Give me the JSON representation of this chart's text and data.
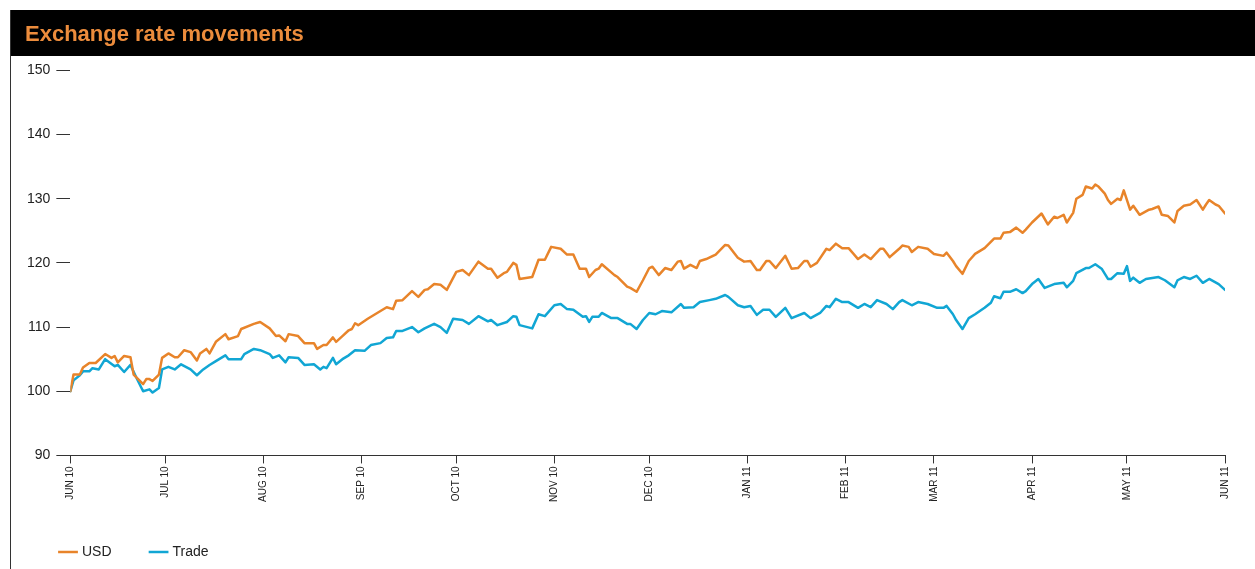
{
  "chart_data": {
    "type": "line",
    "title": "Exchange rate movements",
    "xlim": [
      "2010-06",
      "2011-06"
    ],
    "xticks": [
      {
        "value": "2010-06",
        "label": "JUN 10"
      },
      {
        "value": "2010-07",
        "label": "JUL 10"
      },
      {
        "value": "2010-08",
        "label": "AUG 10"
      },
      {
        "value": "2010-09",
        "label": "SEP 10"
      },
      {
        "value": "2010-10",
        "label": "OCT 10"
      },
      {
        "value": "2010-11",
        "label": "NOV 10"
      },
      {
        "value": "2010-12",
        "label": "DEC 10"
      },
      {
        "value": "2011-01",
        "label": "JAN 11"
      },
      {
        "value": "2011-02",
        "label": "FEB 11"
      },
      {
        "value": "2011-03",
        "label": "MAR 11"
      },
      {
        "value": "2011-04",
        "label": "APR 11"
      },
      {
        "value": "2011-05",
        "label": "MAY 11"
      },
      {
        "value": "2011-06",
        "label": "JUN 11"
      }
    ],
    "ylim": [
      90,
      150
    ],
    "yticks": [
      90,
      100,
      110,
      120,
      130,
      140,
      150
    ],
    "legend": "bottom left",
    "marker": "none",
    "series": [
      {
        "name": "USD",
        "color": "#e8842a",
        "x": [
          "2010-06-01",
          "2010-06-02",
          "2010-06-04",
          "2010-06-05",
          "2010-06-07",
          "2010-06-09",
          "2010-06-12",
          "2010-06-14",
          "2010-06-15",
          "2010-06-16",
          "2010-06-18",
          "2010-06-20",
          "2010-06-21",
          "2010-06-24",
          "2010-06-25",
          "2010-06-26",
          "2010-06-27",
          "2010-06-29",
          "2010-06-30",
          "2010-07-02",
          "2010-07-04",
          "2010-07-05",
          "2010-07-07",
          "2010-07-09",
          "2010-07-11",
          "2010-07-12",
          "2010-07-14",
          "2010-07-15",
          "2010-07-17",
          "2010-07-20",
          "2010-07-21",
          "2010-07-24",
          "2010-07-25",
          "2010-07-29",
          "2010-07-31",
          "2010-08-03",
          "2010-08-05",
          "2010-08-06",
          "2010-08-08",
          "2010-08-09",
          "2010-08-12",
          "2010-08-14",
          "2010-08-17",
          "2010-08-18",
          "2010-08-20",
          "2010-08-21",
          "2010-08-23",
          "2010-08-24",
          "2010-08-26",
          "2010-08-28",
          "2010-08-29",
          "2010-08-30",
          "2010-08-31",
          "2010-09-03",
          "2010-09-06",
          "2010-09-09",
          "2010-09-11",
          "2010-09-12",
          "2010-09-14",
          "2010-09-17",
          "2010-09-19",
          "2010-09-21",
          "2010-09-22",
          "2010-09-24",
          "2010-09-26",
          "2010-09-28",
          "2010-10-01",
          "2010-10-03",
          "2010-10-05",
          "2010-10-08",
          "2010-10-11",
          "2010-10-12",
          "2010-10-14",
          "2010-10-16",
          "2010-10-17",
          "2010-10-19",
          "2010-10-20",
          "2010-10-21",
          "2010-10-25",
          "2010-10-27",
          "2010-10-29",
          "2010-10-31",
          "2010-11-03",
          "2010-11-05",
          "2010-11-07",
          "2010-11-09",
          "2010-11-11",
          "2010-11-12",
          "2010-11-14",
          "2010-11-15",
          "2010-11-16",
          "2010-11-20",
          "2010-11-21",
          "2010-11-24",
          "2010-11-25",
          "2010-11-27",
          "2010-11-29",
          "2010-12-01",
          "2010-12-02",
          "2010-12-04",
          "2010-12-06",
          "2010-12-08",
          "2010-12-10",
          "2010-12-11",
          "2010-12-12",
          "2010-12-14",
          "2010-12-16",
          "2010-12-17",
          "2010-12-19",
          "2010-12-22",
          "2010-12-25",
          "2010-12-26",
          "2010-12-29",
          "2010-12-31",
          "2011-01-02",
          "2011-01-04",
          "2011-01-05",
          "2011-01-07",
          "2011-01-08",
          "2011-01-10",
          "2011-01-13",
          "2011-01-15",
          "2011-01-17",
          "2011-01-19",
          "2011-01-20",
          "2011-01-21",
          "2011-01-23",
          "2011-01-26",
          "2011-01-27",
          "2011-01-29",
          "2011-01-31",
          "2011-02-02",
          "2011-02-05",
          "2011-02-07",
          "2011-02-09",
          "2011-02-12",
          "2011-02-13",
          "2011-02-15",
          "2011-02-18",
          "2011-02-19",
          "2011-02-21",
          "2011-02-22",
          "2011-02-24",
          "2011-02-27",
          "2011-03-01",
          "2011-03-04",
          "2011-03-05",
          "2011-03-07",
          "2011-03-08",
          "2011-03-10",
          "2011-03-12",
          "2011-03-14",
          "2011-03-17",
          "2011-03-20",
          "2011-03-22",
          "2011-03-23",
          "2011-03-25",
          "2011-03-27",
          "2011-03-29",
          "2011-03-30",
          "2011-04-01",
          "2011-04-04",
          "2011-04-06",
          "2011-04-08",
          "2011-04-09",
          "2011-04-11",
          "2011-04-12",
          "2011-04-14",
          "2011-04-15",
          "2011-04-17",
          "2011-04-18",
          "2011-04-20",
          "2011-04-21",
          "2011-04-22",
          "2011-04-24",
          "2011-04-25",
          "2011-04-26",
          "2011-04-28",
          "2011-04-29",
          "2011-04-30",
          "2011-05-02",
          "2011-05-03",
          "2011-05-05",
          "2011-05-08",
          "2011-05-09",
          "2011-05-11",
          "2011-05-12",
          "2011-05-14",
          "2011-05-16",
          "2011-05-17",
          "2011-05-19",
          "2011-05-21",
          "2011-05-23",
          "2011-05-25",
          "2011-05-26",
          "2011-05-27",
          "2011-05-29",
          "2011-05-30",
          "2011-06-01"
        ],
        "values": [
          100,
          102.6,
          102.6,
          103.7,
          104.4,
          104.4,
          105.8,
          105.2,
          105.5,
          104.5,
          105.5,
          105.3,
          102.6,
          101.1,
          101.9,
          101.9,
          101.6,
          102.6,
          105.2,
          105.9,
          105.3,
          105.3,
          106.4,
          106.1,
          104.8,
          105.9,
          106.6,
          105.9,
          107.7,
          108.9,
          108.1,
          108.6,
          109.7,
          110.5,
          110.8,
          109.8,
          108.6,
          108.7,
          107.8,
          108.9,
          108.6,
          107.5,
          107.5,
          106.6,
          107.2,
          107.2,
          108.4,
          107.7,
          108.6,
          109.5,
          109.7,
          110.6,
          110.3,
          111.3,
          112.2,
          113.1,
          112.8,
          114.1,
          114.2,
          115.6,
          114.7,
          115.8,
          115.9,
          116.7,
          116.6,
          115.8,
          118.6,
          118.9,
          118.1,
          120.2,
          119.1,
          119.1,
          117.7,
          118.4,
          118.6,
          120.0,
          119.7,
          117.5,
          117.8,
          120.5,
          120.5,
          122.5,
          122.2,
          121.3,
          121.3,
          119.1,
          119.1,
          117.8,
          118.9,
          119.1,
          119.8,
          118.1,
          117.8,
          116.3,
          116.1,
          115.5,
          117.3,
          119.2,
          119.4,
          118.1,
          119.2,
          118.9,
          120.2,
          120.3,
          119.1,
          119.7,
          119.2,
          120.3,
          120.6,
          121.3,
          122.8,
          122.7,
          120.8,
          120.2,
          120.3,
          118.9,
          118.9,
          120.3,
          120.3,
          119.2,
          121.1,
          119.1,
          119.2,
          120.3,
          120.3,
          119.4,
          120.0,
          122.2,
          122.0,
          123.0,
          122.3,
          122.3,
          120.6,
          121.3,
          120.6,
          122.2,
          122.2,
          120.9,
          122.2,
          122.7,
          122.5,
          121.7,
          122.5,
          122.2,
          121.4,
          121.1,
          121.6,
          120.3,
          119.5,
          118.3,
          120.3,
          121.4,
          122.3,
          123.8,
          123.8,
          124.7,
          124.8,
          125.5,
          124.7,
          125.2,
          126.3,
          127.7,
          126.0,
          127.2,
          127.0,
          127.5,
          126.3,
          127.8,
          130.0,
          130.6,
          131.9,
          131.6,
          132.2,
          131.9,
          130.8,
          129.8,
          129.2,
          130.0,
          129.8,
          131.3,
          128.3,
          128.9,
          127.5,
          128.3,
          128.4,
          128.8,
          127.5,
          127.3,
          126.3,
          128.1,
          128.9,
          129.1,
          129.8,
          128.3,
          129.1,
          129.8,
          129.1,
          128.9,
          127.7
        ]
      },
      {
        "name": "Trade",
        "color": "#11a6d4",
        "x": [
          "2010-06-01",
          "2010-06-02",
          "2010-06-04",
          "2010-06-05",
          "2010-06-07",
          "2010-06-08",
          "2010-06-10",
          "2010-06-12",
          "2010-06-15",
          "2010-06-16",
          "2010-06-18",
          "2010-06-20",
          "2010-06-22",
          "2010-06-24",
          "2010-06-26",
          "2010-06-27",
          "2010-06-29",
          "2010-06-30",
          "2010-07-02",
          "2010-07-04",
          "2010-07-06",
          "2010-07-09",
          "2010-07-11",
          "2010-07-13",
          "2010-07-15",
          "2010-07-17",
          "2010-07-20",
          "2010-07-21",
          "2010-07-25",
          "2010-07-26",
          "2010-07-29",
          "2010-07-31",
          "2010-08-03",
          "2010-08-04",
          "2010-08-06",
          "2010-08-08",
          "2010-08-09",
          "2010-08-12",
          "2010-08-14",
          "2010-08-17",
          "2010-08-19",
          "2010-08-20",
          "2010-08-21",
          "2010-08-23",
          "2010-08-24",
          "2010-08-26",
          "2010-08-28",
          "2010-08-30",
          "2010-09-02",
          "2010-09-04",
          "2010-09-07",
          "2010-09-09",
          "2010-09-11",
          "2010-09-12",
          "2010-09-14",
          "2010-09-17",
          "2010-09-19",
          "2010-09-21",
          "2010-09-24",
          "2010-09-26",
          "2010-09-28",
          "2010-09-30",
          "2010-10-03",
          "2010-10-05",
          "2010-10-08",
          "2010-10-11",
          "2010-10-12",
          "2010-10-14",
          "2010-10-17",
          "2010-10-19",
          "2010-10-20",
          "2010-10-21",
          "2010-10-25",
          "2010-10-27",
          "2010-10-29",
          "2010-11-01",
          "2010-11-03",
          "2010-11-05",
          "2010-11-07",
          "2010-11-10",
          "2010-11-11",
          "2010-11-12",
          "2010-11-13",
          "2010-11-15",
          "2010-11-16",
          "2010-11-19",
          "2010-11-21",
          "2010-11-24",
          "2010-11-25",
          "2010-11-27",
          "2010-11-29",
          "2010-12-01",
          "2010-12-03",
          "2010-12-05",
          "2010-12-08",
          "2010-12-11",
          "2010-12-12",
          "2010-12-15",
          "2010-12-17",
          "2010-12-20",
          "2010-12-22",
          "2010-12-25",
          "2010-12-26",
          "2010-12-29",
          "2010-12-31",
          "2011-01-02",
          "2011-01-04",
          "2011-01-06",
          "2011-01-08",
          "2011-01-10",
          "2011-01-13",
          "2011-01-15",
          "2011-01-19",
          "2011-01-21",
          "2011-01-24",
          "2011-01-26",
          "2011-01-27",
          "2011-01-29",
          "2011-01-31",
          "2011-02-02",
          "2011-02-05",
          "2011-02-07",
          "2011-02-09",
          "2011-02-11",
          "2011-02-14",
          "2011-02-16",
          "2011-02-18",
          "2011-02-19",
          "2011-02-22",
          "2011-02-24",
          "2011-02-27",
          "2011-03-02",
          "2011-03-04",
          "2011-03-05",
          "2011-03-07",
          "2011-03-08",
          "2011-03-10",
          "2011-03-12",
          "2011-03-14",
          "2011-03-17",
          "2011-03-19",
          "2011-03-20",
          "2011-03-22",
          "2011-03-23",
          "2011-03-25",
          "2011-03-27",
          "2011-03-29",
          "2011-03-30",
          "2011-04-01",
          "2011-04-03",
          "2011-04-05",
          "2011-04-08",
          "2011-04-11",
          "2011-04-12",
          "2011-04-14",
          "2011-04-15",
          "2011-04-18",
          "2011-04-19",
          "2011-04-21",
          "2011-04-23",
          "2011-04-25",
          "2011-04-26",
          "2011-04-28",
          "2011-04-30",
          "2011-05-01",
          "2011-05-02",
          "2011-05-03",
          "2011-05-05",
          "2011-05-07",
          "2011-05-11",
          "2011-05-13",
          "2011-05-16",
          "2011-05-17",
          "2011-05-19",
          "2011-05-21",
          "2011-05-23",
          "2011-05-25",
          "2011-05-27",
          "2011-05-30",
          "2011-06-01"
        ],
        "values": [
          100,
          101.7,
          102.5,
          103.1,
          103.1,
          103.6,
          103.4,
          105.0,
          103.9,
          104.1,
          103.0,
          104.1,
          102.0,
          100.0,
          100.3,
          99.8,
          100.5,
          103.4,
          103.8,
          103.4,
          104.2,
          103.4,
          102.5,
          103.4,
          104.1,
          104.7,
          105.6,
          105.0,
          105.0,
          105.8,
          106.6,
          106.4,
          105.8,
          105.2,
          105.6,
          104.5,
          105.3,
          105.2,
          104.1,
          104.2,
          103.4,
          103.8,
          103.6,
          105.2,
          104.2,
          105.0,
          105.6,
          106.4,
          106.3,
          107.2,
          107.5,
          108.3,
          108.4,
          109.4,
          109.4,
          110.0,
          109.2,
          109.8,
          110.5,
          110.0,
          109.1,
          111.3,
          111.1,
          110.5,
          111.7,
          110.9,
          111.1,
          110.3,
          110.8,
          111.7,
          111.6,
          110.3,
          109.8,
          112.0,
          111.7,
          113.4,
          113.6,
          112.8,
          112.7,
          111.6,
          111.7,
          110.8,
          111.6,
          111.6,
          112.2,
          111.4,
          111.4,
          110.5,
          110.5,
          109.7,
          111.1,
          112.2,
          112.0,
          112.5,
          112.3,
          113.6,
          113.0,
          113.1,
          113.9,
          114.2,
          114.4,
          115.0,
          114.7,
          113.4,
          113.1,
          113.3,
          111.9,
          112.7,
          112.7,
          111.6,
          113.0,
          111.4,
          112.2,
          111.4,
          112.2,
          113.3,
          113.1,
          114.4,
          113.9,
          113.9,
          113.0,
          113.6,
          113.1,
          114.2,
          113.6,
          112.8,
          113.9,
          114.2,
          113.4,
          113.9,
          113.6,
          113.0,
          113.0,
          113.3,
          112.0,
          111.1,
          109.7,
          111.4,
          112.0,
          113.0,
          113.8,
          114.8,
          114.5,
          115.5,
          115.5,
          115.9,
          115.3,
          115.6,
          116.7,
          117.5,
          116.1,
          116.7,
          116.9,
          116.2,
          117.2,
          118.4,
          119.2,
          119.2,
          119.8,
          119.1,
          117.5,
          117.5,
          118.4,
          118.3,
          119.5,
          117.2,
          117.7,
          116.9,
          117.5,
          117.8,
          117.3,
          116.2,
          117.3,
          117.8,
          117.5,
          118.0,
          116.9,
          117.5,
          116.7,
          115.8
        ]
      }
    ]
  }
}
